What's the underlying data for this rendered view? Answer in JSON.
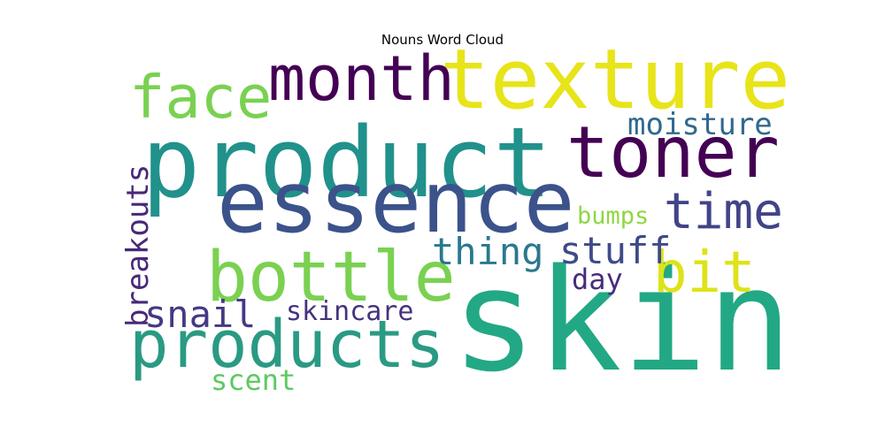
{
  "chart_data": {
    "type": "wordcloud",
    "title": "Nouns Word Cloud",
    "colormap": "viridis",
    "words": [
      {
        "text": "skin",
        "weight": 1.0,
        "color": "#22a884",
        "orientation": "horizontal"
      },
      {
        "text": "product",
        "weight": 0.82,
        "color": "#21918c",
        "orientation": "horizontal"
      },
      {
        "text": "essence",
        "weight": 0.72,
        "color": "#3b528b",
        "orientation": "horizontal"
      },
      {
        "text": "texture",
        "weight": 0.7,
        "color": "#e7e419",
        "orientation": "horizontal"
      },
      {
        "text": "toner",
        "weight": 0.6,
        "color": "#440154",
        "orientation": "horizontal"
      },
      {
        "text": "bottle",
        "weight": 0.58,
        "color": "#7ad151",
        "orientation": "horizontal"
      },
      {
        "text": "products",
        "weight": 0.56,
        "color": "#2a9a83",
        "orientation": "horizontal"
      },
      {
        "text": "month",
        "weight": 0.52,
        "color": "#440154",
        "orientation": "horizontal"
      },
      {
        "text": "face",
        "weight": 0.5,
        "color": "#7ad151",
        "orientation": "horizontal"
      },
      {
        "text": "bit",
        "weight": 0.48,
        "color": "#dde318",
        "orientation": "horizontal"
      },
      {
        "text": "time",
        "weight": 0.42,
        "color": "#414487",
        "orientation": "horizontal"
      },
      {
        "text": "thing",
        "weight": 0.32,
        "color": "#2a788e",
        "orientation": "horizontal"
      },
      {
        "text": "stuff",
        "weight": 0.32,
        "color": "#3e4a89",
        "orientation": "horizontal"
      },
      {
        "text": "snail",
        "weight": 0.32,
        "color": "#443983",
        "orientation": "horizontal"
      },
      {
        "text": "moisture",
        "weight": 0.26,
        "color": "#31688e",
        "orientation": "horizontal"
      },
      {
        "text": "breakouts",
        "weight": 0.26,
        "color": "#482878",
        "orientation": "vertical"
      },
      {
        "text": "skincare",
        "weight": 0.24,
        "color": "#46337e",
        "orientation": "horizontal"
      },
      {
        "text": "day",
        "weight": 0.24,
        "color": "#472d7b",
        "orientation": "horizontal"
      },
      {
        "text": "scent",
        "weight": 0.24,
        "color": "#5ec962",
        "orientation": "horizontal"
      },
      {
        "text": "bumps",
        "weight": 0.2,
        "color": "#8fd744",
        "orientation": "horizontal"
      }
    ]
  }
}
